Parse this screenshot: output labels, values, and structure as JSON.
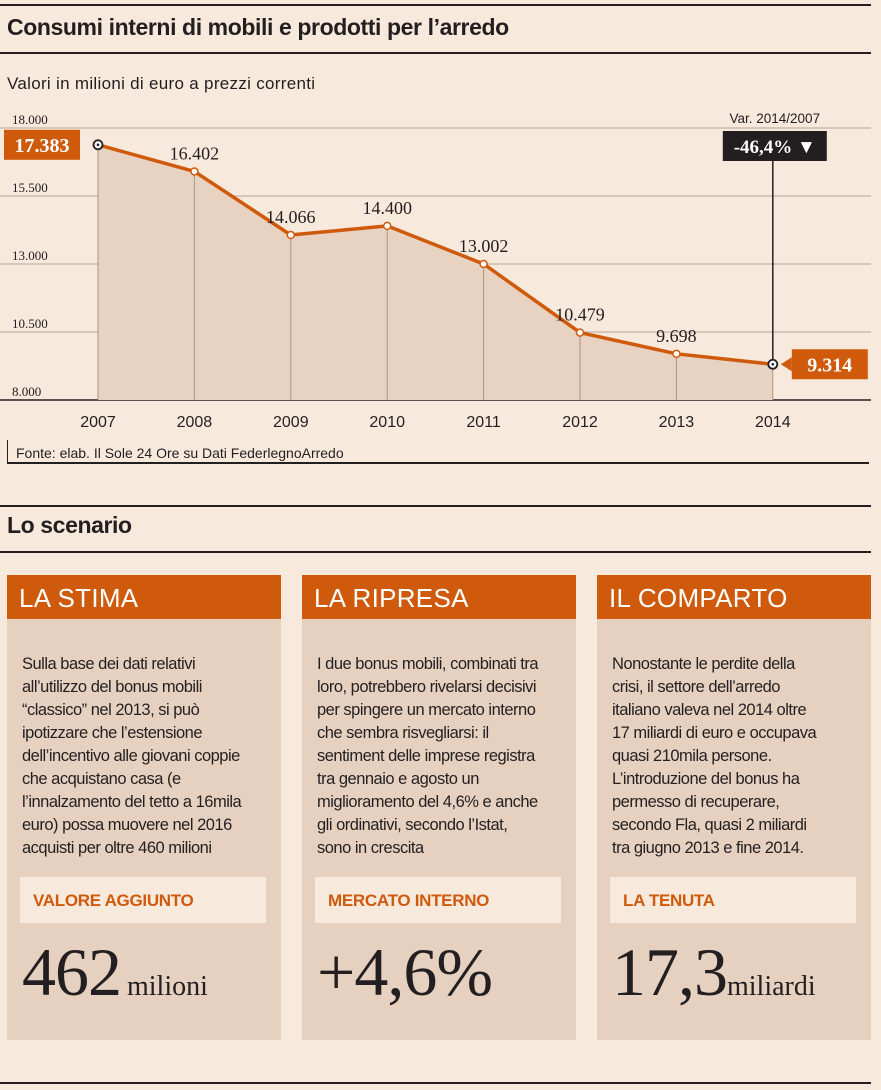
{
  "title": "Consumi interni di mobili e prodotti per l’arredo",
  "subtitle": "Valori in milioni di euro a prezzi correnti",
  "chart_data": {
    "type": "area",
    "title": "Consumi interni di mobili e prodotti per l’arredo",
    "ylabel": "Valori in milioni di euro a prezzi correnti",
    "ylim": [
      8000,
      18000
    ],
    "yticks": [
      8000,
      10500,
      13000,
      15500,
      18000
    ],
    "ytick_labels": [
      "8.000",
      "10.500",
      "13.000",
      "15.500",
      "18.000"
    ],
    "categories": [
      "2007",
      "2008",
      "2009",
      "2010",
      "2011",
      "2012",
      "2013",
      "2014"
    ],
    "series": [
      {
        "name": "Consumi interni",
        "values": [
          17383,
          16402,
          14066,
          14400,
          13002,
          10479,
          9698,
          9314
        ],
        "labels": [
          "17.383",
          "16.402",
          "14.066",
          "14.400",
          "13.002",
          "10.479",
          "9.698",
          "9.314"
        ]
      }
    ],
    "annotation": {
      "label": "Var. 2014/2007",
      "value": "-46,4%",
      "arrow": "▼"
    },
    "colors": {
      "line": "#cf5a0c",
      "area": "#e8d2c1",
      "annotation_bg": "#231f20"
    }
  },
  "source": "Fonte:  elab. Il Sole 24 Ore su Dati FederlegnoArredo",
  "section_title": "Lo scenario",
  "cards": [
    {
      "title": "LA STIMA",
      "lines": [
        "Sulla base dei dati relativi",
        "all’utilizzo del bonus mobili",
        "“classico” nel 2013, si può",
        "ipotizzare che l’estensione",
        "dell’incentivo alle giovani coppie",
        "che acquistano casa (e",
        "l’innalzamento del tetto a 16mila",
        "euro) possa muovere nel 2016",
        "acquisti per oltre 460 milioni"
      ],
      "tab": "VALORE AGGIUNTO",
      "value": "462",
      "unit": "milioni"
    },
    {
      "title": "LA RIPRESA",
      "lines": [
        "I due bonus mobili, combinati tra",
        "loro, potrebbero rivelarsi decisivi",
        "per spingere un mercato interno",
        "che sembra risvegliarsi: il",
        "sentiment delle imprese registra",
        "tra gennaio e agosto un",
        "miglioramento del 4,6% e anche",
        "gli ordinativi, secondo l’Istat,",
        "sono in crescita"
      ],
      "tab": "MERCATO INTERNO",
      "value": "+4,6%",
      "unit": ""
    },
    {
      "title": "IL COMPARTO",
      "lines": [
        "Nonostante le perdite della",
        "crisi, il settore dell’arredo",
        "italiano valeva nel 2014 oltre",
        "17 miliardi di euro e occupava",
        "quasi 210mila persone.",
        "L’introduzione del bonus ha",
        "permesso di recuperare,",
        "secondo Fla, quasi 2 miliardi",
        "tra giugno 2013 e fine 2014."
      ],
      "tab": "LA TENUTA",
      "value": "17,3",
      "unit": "miliardi"
    }
  ],
  "colors": {
    "accent": "#cf5a0c",
    "background": "#f7e9dc",
    "card": "#e6d1c0",
    "ink": "#231f20"
  }
}
